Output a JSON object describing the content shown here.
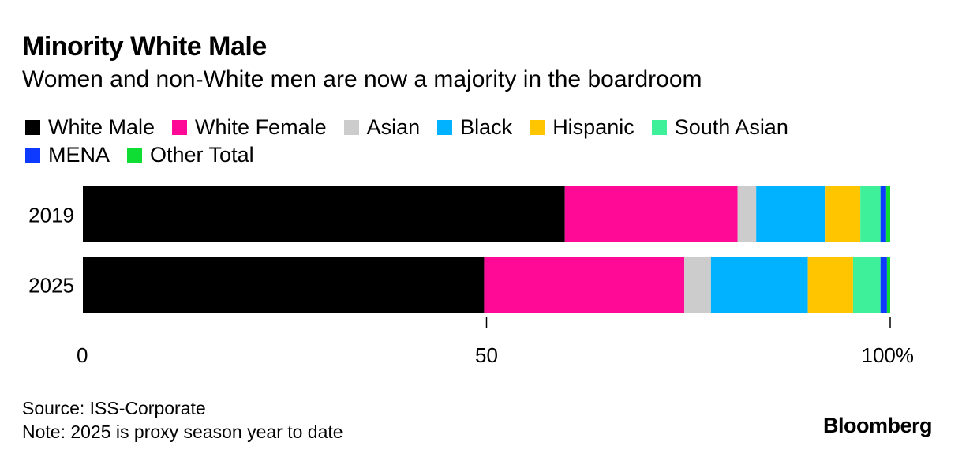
{
  "title": "Minority White Male",
  "subtitle": "Women and non-White men are now a majority in the boardroom",
  "legend": [
    {
      "label": "White Male",
      "color": "#000000"
    },
    {
      "label": "White Female",
      "color": "#ff0a96"
    },
    {
      "label": "Asian",
      "color": "#cccccc"
    },
    {
      "label": "Black",
      "color": "#00b2ff"
    },
    {
      "label": "Hispanic",
      "color": "#ffc600"
    },
    {
      "label": "South Asian",
      "color": "#3ef09a"
    },
    {
      "label": "MENA",
      "color": "#0e3aff"
    },
    {
      "label": "Other Total",
      "color": "#0fdd33"
    }
  ],
  "chart_data": {
    "type": "bar",
    "orientation": "horizontal",
    "stacked": true,
    "categories": [
      "2019",
      "2025"
    ],
    "series": [
      {
        "name": "White Male",
        "color": "#000000",
        "values": [
          59.7,
          49.7
        ]
      },
      {
        "name": "White Female",
        "color": "#ff0a96",
        "values": [
          21.4,
          24.8
        ]
      },
      {
        "name": "Asian",
        "color": "#cccccc",
        "values": [
          2.3,
          3.3
        ]
      },
      {
        "name": "Black",
        "color": "#00b2ff",
        "values": [
          8.6,
          12.0
        ]
      },
      {
        "name": "Hispanic",
        "color": "#ffc600",
        "values": [
          4.3,
          5.6
        ]
      },
      {
        "name": "South Asian",
        "color": "#3ef09a",
        "values": [
          2.5,
          3.4
        ]
      },
      {
        "name": "MENA",
        "color": "#0e3aff",
        "values": [
          0.7,
          0.8
        ]
      },
      {
        "name": "Other Total",
        "color": "#0fdd33",
        "values": [
          0.5,
          0.4
        ]
      }
    ],
    "xlim": [
      0,
      100
    ],
    "xticks": [
      {
        "value": 0,
        "label": "0"
      },
      {
        "value": 50,
        "label": "50"
      },
      {
        "value": 100,
        "label": "100%"
      }
    ],
    "grid": false,
    "legend_position": "top"
  },
  "footer": {
    "source": "Source: ISS-Corporate",
    "note": "Note: 2025 is proxy season year to date"
  },
  "brand": "Bloomberg"
}
